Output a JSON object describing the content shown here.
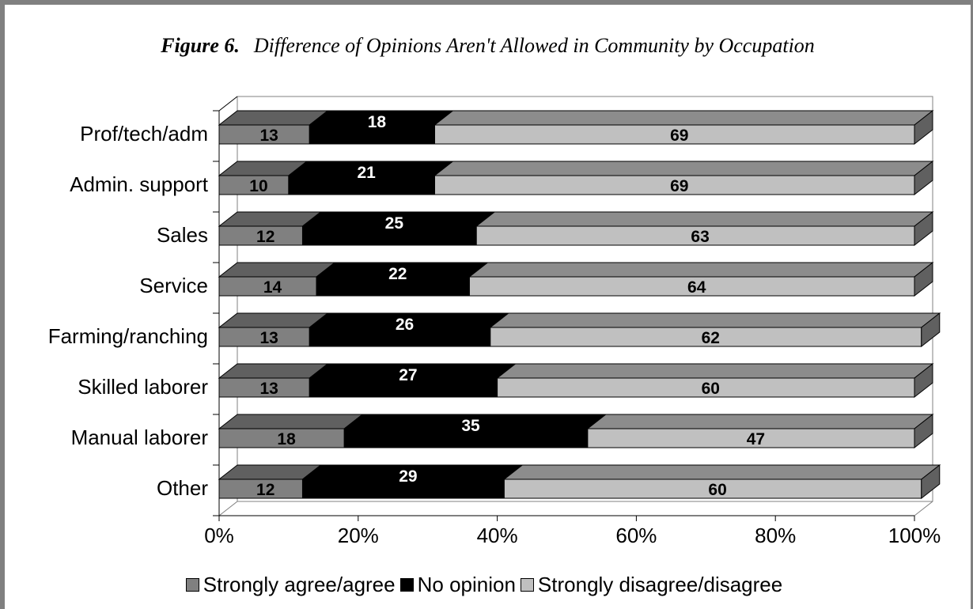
{
  "figure": {
    "label": "Figure 6.",
    "title": "Difference of Opinions Aren't Allowed in Community by Occupation"
  },
  "colors": {
    "agree": "#808080",
    "no_opinion": "#000000",
    "disagree": "#c0c0c0"
  },
  "chart_data": {
    "type": "bar",
    "orientation": "horizontal",
    "stacked": "percent",
    "style": "3d",
    "title": "Difference of Opinions Aren't Allowed in Community by Occupation",
    "categories": [
      "Prof/tech/adm",
      "Admin. support",
      "Sales",
      "Service",
      "Farming/ranching",
      "Skilled laborer",
      "Manual laborer",
      "Other"
    ],
    "series": [
      {
        "name": "Strongly agree/agree",
        "values": [
          13,
          10,
          12,
          14,
          13,
          13,
          18,
          12
        ]
      },
      {
        "name": "No opinion",
        "values": [
          18,
          21,
          25,
          22,
          26,
          27,
          35,
          29
        ]
      },
      {
        "name": "Strongly disagree/disagree",
        "values": [
          69,
          69,
          63,
          64,
          62,
          60,
          47,
          60
        ]
      }
    ],
    "x_ticks": [
      "0%",
      "20%",
      "40%",
      "60%",
      "80%",
      "100%"
    ],
    "xlim": [
      0,
      100
    ],
    "data_labels": true,
    "grid": false,
    "legend_position": "bottom"
  }
}
